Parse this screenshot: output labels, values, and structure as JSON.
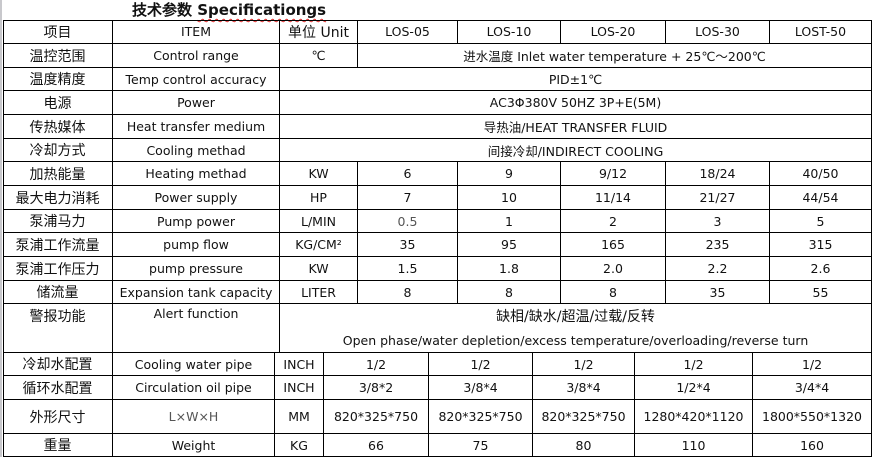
{
  "title": {
    "cn": "技术参数",
    "en": "Specificationgs"
  },
  "header": {
    "cn": "项目",
    "en": "ITEM",
    "unit": "单位 Unit",
    "models": [
      "LOS-05",
      "LOS-10",
      "LOS-20",
      "LOS-30",
      "LOST-50"
    ]
  },
  "rows": [
    {
      "cn": "温控范围",
      "en": "Control range",
      "unit": "℃",
      "span": "进水温度 Inlet water temperature + 25℃～200℃"
    },
    {
      "cn": "温度精度",
      "en": "Temp control accuracy",
      "span": "PID±1℃"
    },
    {
      "cn": "电源",
      "en": "Power",
      "span": "AC3Φ380V 50HZ 3P+E(5M)"
    },
    {
      "cn": "传热媒体",
      "en": "Heat transfer medium",
      "span": "导热油/HEAT TRANSFER FLUID"
    },
    {
      "cn": "冷却方式",
      "en": "Cooling methad",
      "span": "间接冷却/INDIRECT COOLING"
    },
    {
      "cn": "加热能量",
      "en": "Heating methad",
      "unit": "KW",
      "values": [
        "6",
        "9",
        "9/12",
        "18/24",
        "40/50"
      ]
    },
    {
      "cn": "最大电力消耗",
      "en": "Power supply",
      "unit": "HP",
      "values": [
        "7",
        "10",
        "11/14",
        "21/27",
        "44/54"
      ]
    },
    {
      "cn": "泵浦马力",
      "en": "Pump power",
      "unit": "L/MIN",
      "values": [
        "0.5",
        "1",
        "2",
        "3",
        "5"
      ]
    },
    {
      "cn": "泵浦工作流量",
      "en": "pump flow",
      "unit": "KG/CM²",
      "values": [
        "35",
        "95",
        "165",
        "235",
        "315"
      ]
    },
    {
      "cn": "泵浦工作压力",
      "en": "pump pressure",
      "unit": "KW",
      "values": [
        "1.5",
        "1.8",
        "2.0",
        "2.2",
        "2.6"
      ]
    },
    {
      "cn": "储流量",
      "en": "Expansion tank capacity",
      "unit": "LITER",
      "values": [
        "8",
        "8",
        "8",
        "35",
        "55"
      ]
    },
    {
      "cn": "警报功能",
      "en": "Alert function",
      "span_lines": [
        "缺相/缺水/超温/过载/反转",
        "Open phase/water depletion/excess temperature/overloading/reverse turn"
      ]
    },
    {
      "cn": "冷却水配置",
      "en": "Cooling water pipe",
      "unit": "INCH",
      "values": [
        "1/2",
        "1/2",
        "1/2",
        "1/2",
        "1/2"
      ]
    },
    {
      "cn": "循环水配置",
      "en": "Circulation oil pipe",
      "unit": "INCH",
      "values": [
        "3/8*2",
        "3/8*4",
        "3/8*4",
        "1/2*4",
        "3/4*4"
      ]
    },
    {
      "cn": "外形尺寸",
      "en": "L×W×H",
      "unit": "MM",
      "values": [
        "820*325*750",
        "820*325*750",
        "820*325*750",
        "1280*420*1120",
        "1800*550*1320"
      ]
    },
    {
      "cn": "重量",
      "en": "Weight",
      "unit": "KG",
      "values": [
        "66",
        "75",
        "80",
        "110",
        "160"
      ]
    }
  ]
}
